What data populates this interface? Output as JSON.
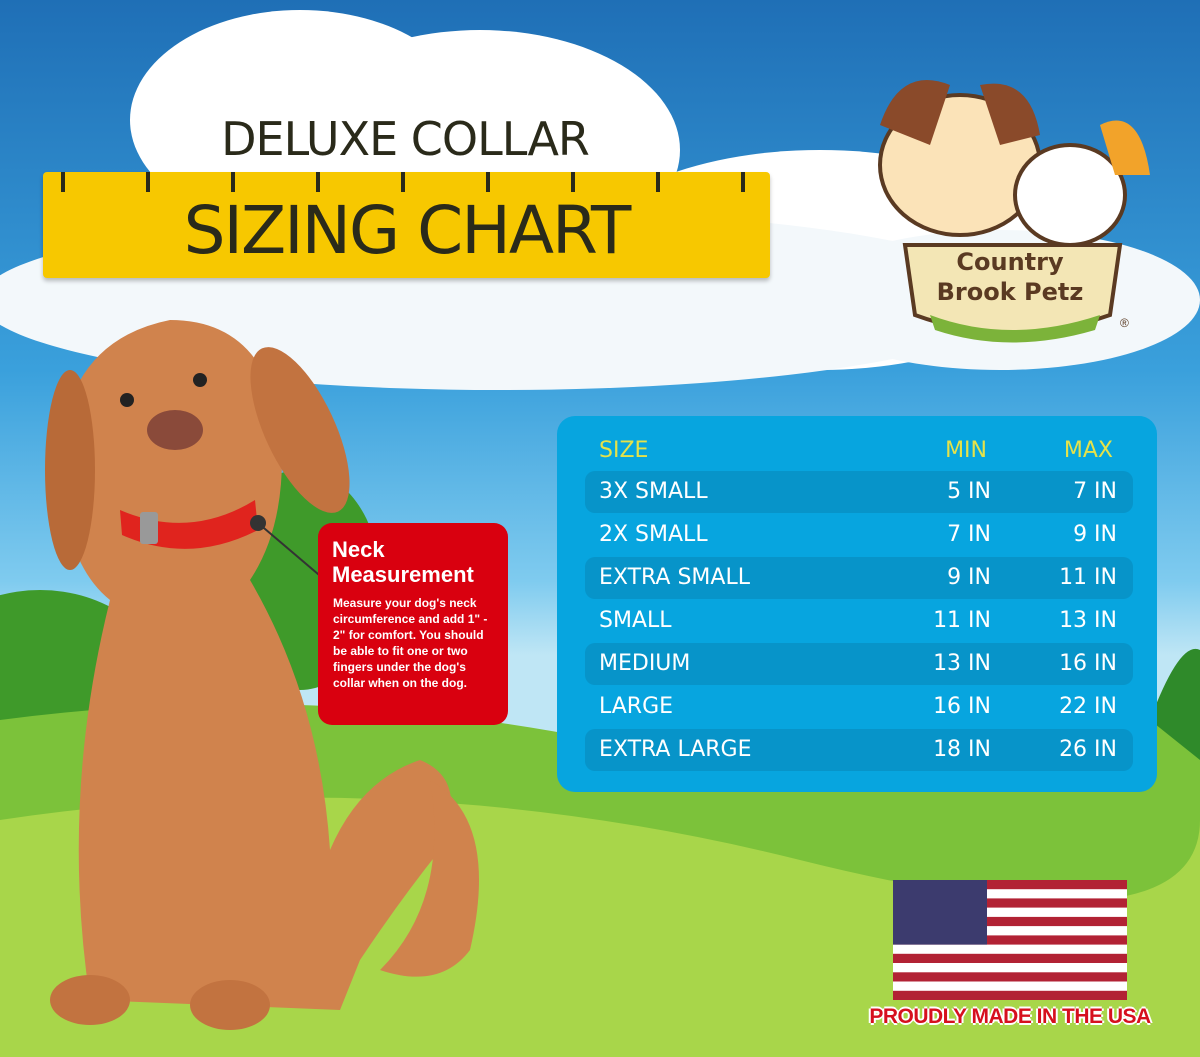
{
  "header": {
    "line1": "DELUXE COLLAR",
    "line2": "SIZING CHART"
  },
  "logo": {
    "text_line1": "Country",
    "text_line2": "Brook Petz",
    "registered": "®"
  },
  "neck_box": {
    "title_line1": "Neck",
    "title_line2": "Measurement",
    "body": "Measure your dog's neck circumference and add 1\" - 2\" for comfort. You should be able to fit one or two fingers under the dog's collar when on the dog."
  },
  "size_table": {
    "columns": [
      "SIZE",
      "MIN",
      "MAX"
    ],
    "rows": [
      {
        "size": "3X SMALL",
        "min": "5 IN",
        "max": "7 IN"
      },
      {
        "size": "2X SMALL",
        "min": "7 IN",
        "max": "9 IN"
      },
      {
        "size": "EXTRA SMALL",
        "min": "9 IN",
        "max": "11 IN"
      },
      {
        "size": "SMALL",
        "min": "11 IN",
        "max": "13 IN"
      },
      {
        "size": "MEDIUM",
        "min": "13 IN",
        "max": "16 IN"
      },
      {
        "size": "LARGE",
        "min": "16 IN",
        "max": "22 IN"
      },
      {
        "size": "EXTRA LARGE",
        "min": "18 IN",
        "max": "26 IN"
      }
    ]
  },
  "footer": {
    "made_in": "PROUDLY MADE IN THE USA"
  },
  "colors": {
    "ruler": "#f7c800",
    "panel": "#07a5df",
    "row_dark": "#0794c9",
    "header_text": "#e5e24a",
    "neck_box": "#d9000f"
  }
}
